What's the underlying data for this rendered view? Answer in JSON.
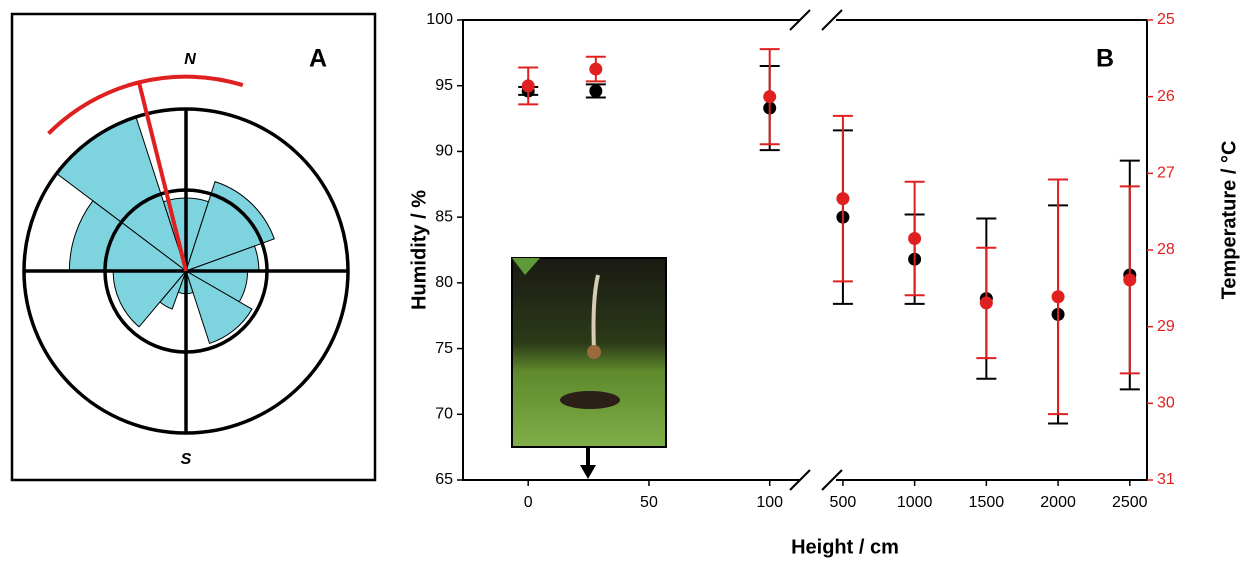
{
  "chart_data": [
    {
      "type": "rose",
      "label": "A",
      "north_label": "N",
      "south_label": "S",
      "rmax": 100,
      "inner_ring": 50,
      "color": "#7dd3de",
      "arc_color": "#e02020",
      "sectors": [
        {
          "start": 307,
          "end": 342,
          "value": 100
        },
        {
          "start": 342,
          "end": 18,
          "value": 45
        },
        {
          "start": 18,
          "end": 70,
          "value": 58
        },
        {
          "start": 70,
          "end": 90,
          "value": 45
        },
        {
          "start": 90,
          "end": 120,
          "value": 38
        },
        {
          "start": 120,
          "end": 162,
          "value": 47
        },
        {
          "start": 162,
          "end": 200,
          "value": 14
        },
        {
          "start": 200,
          "end": 220,
          "value": 25
        },
        {
          "start": 220,
          "end": 270,
          "value": 45
        },
        {
          "start": 270,
          "end": 307,
          "value": 72
        }
      ],
      "mean_direction": 346,
      "mean_arc": [
        315,
        17
      ],
      "mean_length": 120
    },
    {
      "type": "scatter",
      "label": "B",
      "xlabel": "Height / cm",
      "ylabel": "Humidity / %",
      "y2label": "Temperature / °C",
      "x": [
        0,
        28,
        100,
        500,
        1000,
        1500,
        2000,
        2500
      ],
      "x_segments": [
        {
          "xlim": [
            -27,
            120
          ],
          "xticks": [
            0,
            50,
            100
          ]
        },
        {
          "xlim": [
            410,
            2620
          ],
          "xticks": [
            500,
            1000,
            1500,
            2000,
            2500
          ]
        }
      ],
      "ylim": [
        65,
        100
      ],
      "yticks": [
        65,
        70,
        75,
        80,
        85,
        90,
        95,
        100
      ],
      "y2lim": [
        25,
        31
      ],
      "y2ticks": [
        25,
        26,
        27,
        28,
        29,
        30,
        31
      ],
      "y2_inverted": true,
      "series": [
        {
          "color": "#000000",
          "values": [
            94.6,
            94.6,
            93.3,
            85.0,
            81.8,
            78.8,
            77.6,
            80.6
          ],
          "errors": [
            0.3,
            0.5,
            3.2,
            6.6,
            3.4,
            6.1,
            8.3,
            8.7
          ]
        },
        {
          "color": "#e02020",
          "axis": "y2",
          "values": [
            25.86,
            25.64,
            26.0,
            27.33,
            27.85,
            28.69,
            28.61,
            28.39
          ],
          "errors": [
            0.24,
            0.16,
            0.62,
            1.08,
            0.74,
            0.72,
            1.53,
            1.22
          ]
        }
      ]
    }
  ]
}
